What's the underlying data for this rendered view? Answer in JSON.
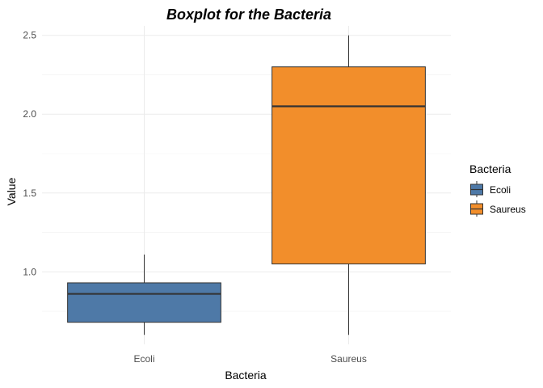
{
  "chart_data": {
    "type": "box",
    "title": "Boxplot for the Bacteria",
    "xlabel": "Bacteria",
    "ylabel": "Value",
    "categories": [
      "Ecoli",
      "Saureus"
    ],
    "boxes": [
      {
        "category": "Ecoli",
        "min": 0.6,
        "q1": 0.68,
        "median": 0.86,
        "q3": 0.93,
        "max": 1.11,
        "color": "#4E79A7"
      },
      {
        "category": "Saureus",
        "min": 0.6,
        "q1": 1.05,
        "median": 2.05,
        "q3": 2.3,
        "max": 2.5,
        "color": "#F28E2B"
      }
    ],
    "y_ticks": [
      1.0,
      1.5,
      2.0,
      2.5
    ],
    "y_tick_labels": [
      "1.0",
      "1.5",
      "2.0",
      "2.5"
    ],
    "ylim": [
      0.54,
      2.56
    ],
    "grid": true,
    "legend": {
      "title": "Bacteria",
      "placement": "right",
      "entries": [
        {
          "label": "Ecoli",
          "color": "#4E79A7"
        },
        {
          "label": "Saureus",
          "color": "#F28E2B"
        }
      ]
    }
  }
}
